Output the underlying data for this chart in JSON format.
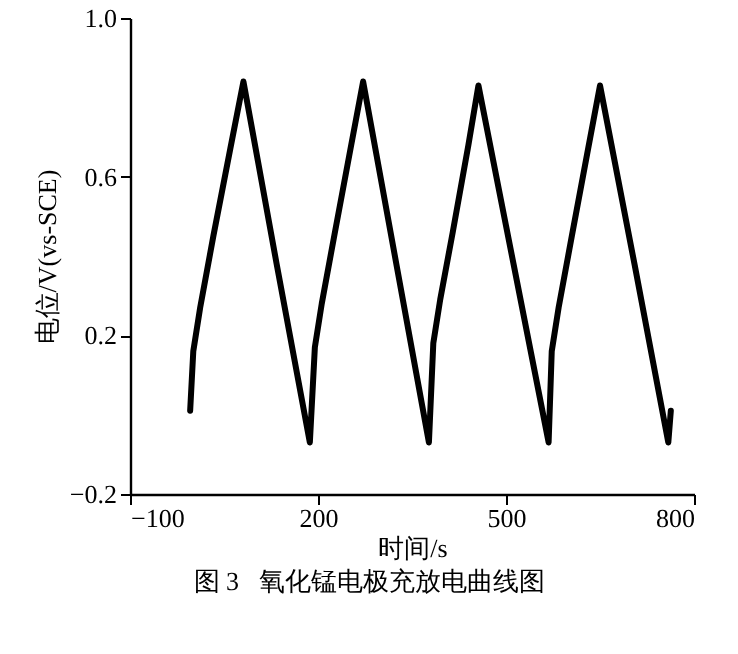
{
  "chart_data": {
    "type": "line",
    "xlabel": "时间/s",
    "ylabel": "电位/V(vs-SCE)",
    "annotations": [
      "图 3   氧化锰电极充放电曲线图"
    ],
    "xlim": [
      -100,
      800
    ],
    "xticks": [
      -100,
      200,
      500,
      800
    ],
    "ylim": [
      -0.2,
      1.0
    ],
    "yticks": [
      -0.2,
      0.2,
      0.6,
      {
        "value": 1.0,
        "label": "1.0"
      }
    ],
    "grid": false,
    "marker": "none",
    "line_style": "solid",
    "series": [
      {
        "color": "#000000",
        "x": [
          -4,
          1,
          12,
          33,
          60,
          81,
          134,
          187,
          195,
          206,
          227,
          253,
          272,
          325,
          377,
          384,
          395,
          415,
          440,
          456,
          512,
          568,
          573,
          584,
          605,
          631,
          650,
          705,
          759,
          763
        ],
        "values": [
          0.01,
          0.16,
          0.27,
          0.45,
          0.67,
          0.84,
          0.38,
          -0.07,
          0.17,
          0.28,
          0.46,
          0.68,
          0.84,
          0.38,
          -0.07,
          0.18,
          0.29,
          0.46,
          0.68,
          0.83,
          0.38,
          -0.07,
          0.16,
          0.27,
          0.45,
          0.67,
          0.83,
          0.38,
          -0.07,
          0.01
        ]
      }
    ]
  }
}
